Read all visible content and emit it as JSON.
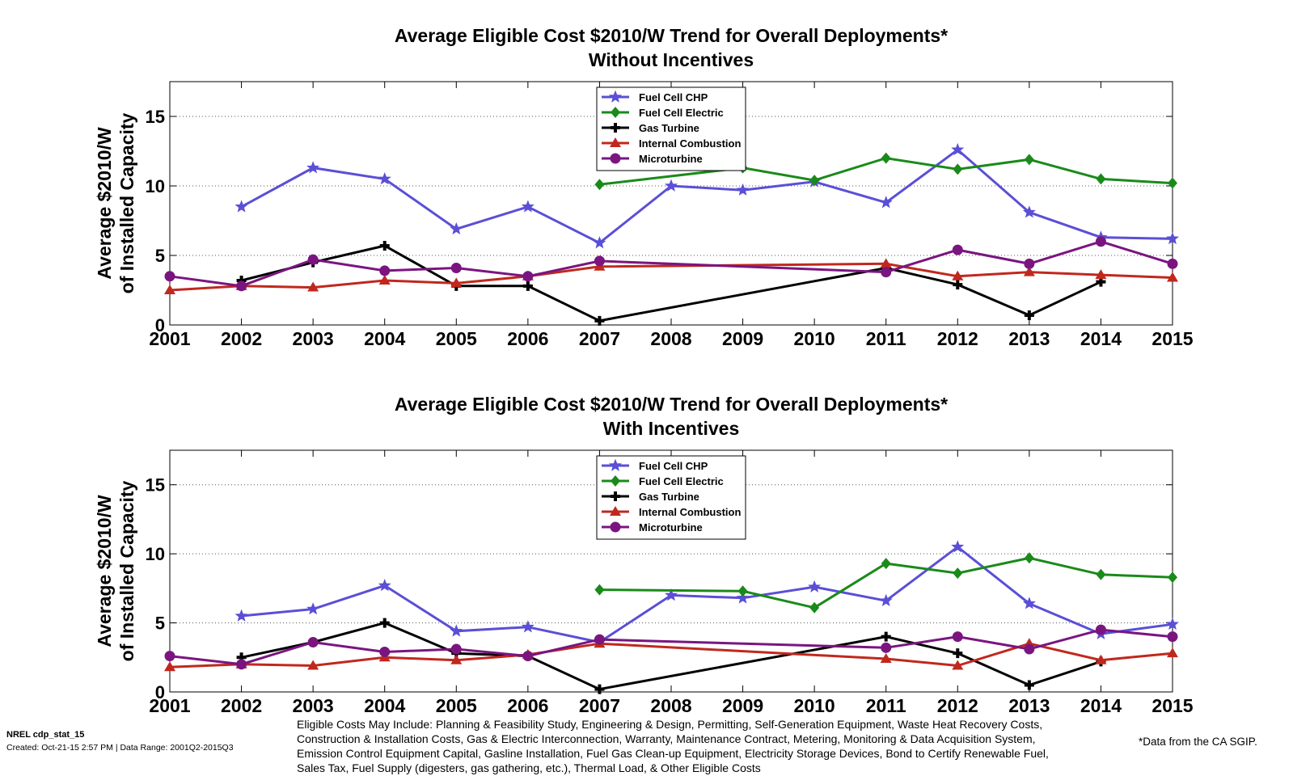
{
  "chart_data": [
    {
      "type": "line",
      "title": "Average Eligible Cost $2010/W Trend for Overall Deployments*",
      "subtitle": "Without Incentives",
      "ylabel_line1": "Average $2010/W",
      "ylabel_line2": "of Installed Capacity",
      "xlabel": "",
      "x": [
        2001,
        2002,
        2003,
        2004,
        2005,
        2006,
        2007,
        2008,
        2009,
        2010,
        2011,
        2012,
        2013,
        2014,
        2015
      ],
      "xlim": [
        2001,
        2015
      ],
      "ylim": [
        0,
        17.5
      ],
      "yticks": [
        0,
        5,
        10,
        15
      ],
      "grid": "horizontal dotted",
      "legend_placement": "top-center",
      "series": [
        {
          "name": "Fuel Cell CHP",
          "color": "#5a4fd6",
          "marker": "star",
          "values": [
            null,
            8.5,
            11.3,
            10.5,
            6.9,
            8.5,
            5.9,
            10.0,
            9.7,
            10.3,
            8.8,
            12.6,
            8.1,
            6.3,
            6.2
          ]
        },
        {
          "name": "Fuel Cell Electric",
          "color": "#1a8a1a",
          "marker": "diamond",
          "values": [
            null,
            null,
            null,
            null,
            null,
            null,
            10.1,
            null,
            11.3,
            10.4,
            12.0,
            11.2,
            11.9,
            10.5,
            10.2
          ]
        },
        {
          "name": "Gas Turbine",
          "color": "#000000",
          "marker": "plus",
          "values": [
            null,
            3.2,
            4.5,
            5.7,
            2.8,
            2.8,
            0.3,
            null,
            null,
            null,
            4.1,
            2.9,
            0.7,
            3.1,
            null
          ]
        },
        {
          "name": "Internal Combustion",
          "color": "#c0281e",
          "marker": "triangle",
          "values": [
            2.5,
            2.8,
            2.7,
            3.2,
            3.0,
            3.5,
            4.2,
            null,
            null,
            null,
            4.4,
            3.5,
            3.8,
            3.6,
            3.4
          ]
        },
        {
          "name": "Microturbine",
          "color": "#7a1580",
          "marker": "circle",
          "values": [
            3.5,
            2.8,
            4.7,
            3.9,
            4.1,
            3.5,
            4.6,
            null,
            null,
            null,
            3.8,
            5.4,
            4.4,
            6.0,
            4.4
          ]
        }
      ]
    },
    {
      "type": "line",
      "title": "Average Eligible Cost $2010/W Trend for Overall Deployments*",
      "subtitle": "With Incentives",
      "ylabel_line1": "Average $2010/W",
      "ylabel_line2": "of Installed Capacity",
      "xlabel": "",
      "x": [
        2001,
        2002,
        2003,
        2004,
        2005,
        2006,
        2007,
        2008,
        2009,
        2010,
        2011,
        2012,
        2013,
        2014,
        2015
      ],
      "xlim": [
        2001,
        2015
      ],
      "ylim": [
        0,
        17.5
      ],
      "yticks": [
        0,
        5,
        10,
        15
      ],
      "grid": "horizontal dotted",
      "legend_placement": "top-center",
      "series": [
        {
          "name": "Fuel Cell CHP",
          "color": "#5a4fd6",
          "marker": "star",
          "values": [
            null,
            5.5,
            6.0,
            7.7,
            4.4,
            4.7,
            3.6,
            7.0,
            6.8,
            7.6,
            6.6,
            10.5,
            6.4,
            4.2,
            4.9
          ]
        },
        {
          "name": "Fuel Cell Electric",
          "color": "#1a8a1a",
          "marker": "diamond",
          "values": [
            null,
            null,
            null,
            null,
            null,
            null,
            7.4,
            null,
            7.3,
            6.1,
            9.3,
            8.6,
            9.7,
            8.5,
            8.3
          ]
        },
        {
          "name": "Gas Turbine",
          "color": "#000000",
          "marker": "plus",
          "values": [
            null,
            2.5,
            3.6,
            5.0,
            2.8,
            2.6,
            0.2,
            null,
            null,
            null,
            4.0,
            2.8,
            0.5,
            2.2,
            null
          ]
        },
        {
          "name": "Internal Combustion",
          "color": "#c0281e",
          "marker": "triangle",
          "values": [
            1.8,
            2.0,
            1.9,
            2.5,
            2.3,
            2.7,
            3.5,
            null,
            null,
            null,
            2.4,
            1.9,
            3.5,
            2.3,
            2.8
          ]
        },
        {
          "name": "Microturbine",
          "color": "#7a1580",
          "marker": "circle",
          "values": [
            2.6,
            2.0,
            3.6,
            2.9,
            3.1,
            2.6,
            3.8,
            null,
            null,
            null,
            3.2,
            4.0,
            3.1,
            4.5,
            4.0
          ]
        }
      ]
    }
  ],
  "footer": {
    "id": "NREL cdp_stat_15",
    "created": "Created: Oct-21-15  2:57 PM | Data Range: 2001Q2-2015Q3",
    "eligible_costs": "Eligible Costs May Include: Planning & Feasibility Study, Engineering & Design, Permitting, Self-Generation Equipment, Waste Heat Recovery Costs, Construction & Installation Costs, Gas & Electric Interconnection, Warranty, Maintenance Contract, Metering, Monitoring & Data Acquisition System, Emission Control Equipment Capital, Gasline Installation, Fuel Gas Clean-up Equipment, Electricity Storage Devices, Bond to Certify Renewable Fuel, Sales Tax, Fuel Supply (digesters, gas gathering, etc.), Thermal Load, & Other Eligible Costs",
    "note": "*Data from the CA SGIP."
  }
}
